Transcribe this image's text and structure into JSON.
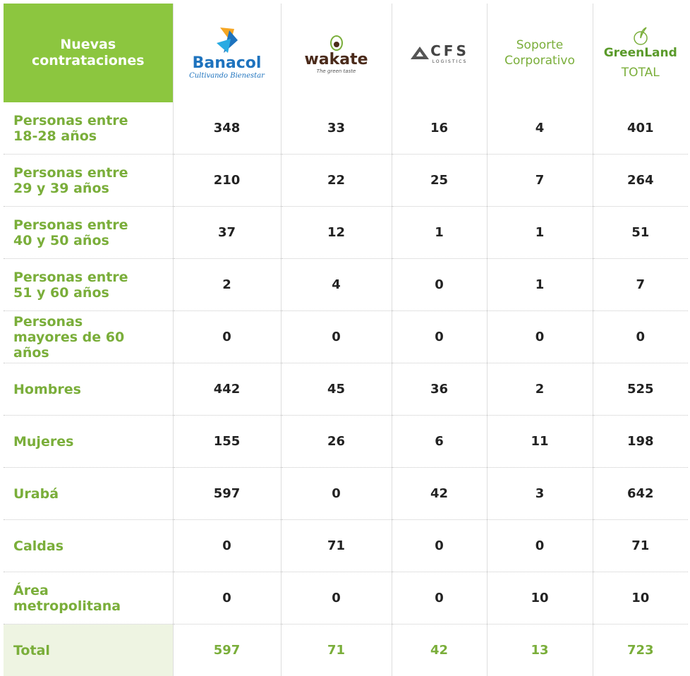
{
  "header": {
    "title": "Nuevas contrataciones",
    "columns": [
      {
        "name": "Banacol",
        "tagline": "Cultivando Bienestar"
      },
      {
        "name": "wakate",
        "tagline": "The green taste"
      },
      {
        "name": "CFS",
        "tagline": "LOGISTICS"
      },
      {
        "name": "Soporte Corporativo"
      },
      {
        "name": "GreenLand",
        "tagline": "TOTAL"
      }
    ]
  },
  "rows": [
    {
      "label": "Personas entre 18-28 años",
      "values": [
        348,
        33,
        16,
        4,
        401
      ]
    },
    {
      "label": "Personas entre 29 y 39 años",
      "values": [
        210,
        22,
        25,
        7,
        264
      ]
    },
    {
      "label": "Personas entre 40 y 50 años",
      "values": [
        37,
        12,
        1,
        1,
        51
      ]
    },
    {
      "label": "Personas entre 51 y 60 años",
      "values": [
        2,
        4,
        0,
        1,
        7
      ]
    },
    {
      "label": "Personas mayores de 60 años",
      "values": [
        0,
        0,
        0,
        0,
        0
      ]
    },
    {
      "label": "Hombres",
      "values": [
        442,
        45,
        36,
        2,
        525
      ]
    },
    {
      "label": "Mujeres",
      "values": [
        155,
        26,
        6,
        11,
        198
      ]
    },
    {
      "label": "Urabá",
      "values": [
        597,
        0,
        42,
        3,
        642
      ]
    },
    {
      "label": "Caldas",
      "values": [
        0,
        71,
        0,
        0,
        71
      ]
    },
    {
      "label": "Área metropolitana",
      "values": [
        0,
        0,
        0,
        10,
        10
      ]
    }
  ],
  "total": {
    "label": "Total",
    "values": [
      597,
      71,
      42,
      13,
      723
    ]
  }
}
